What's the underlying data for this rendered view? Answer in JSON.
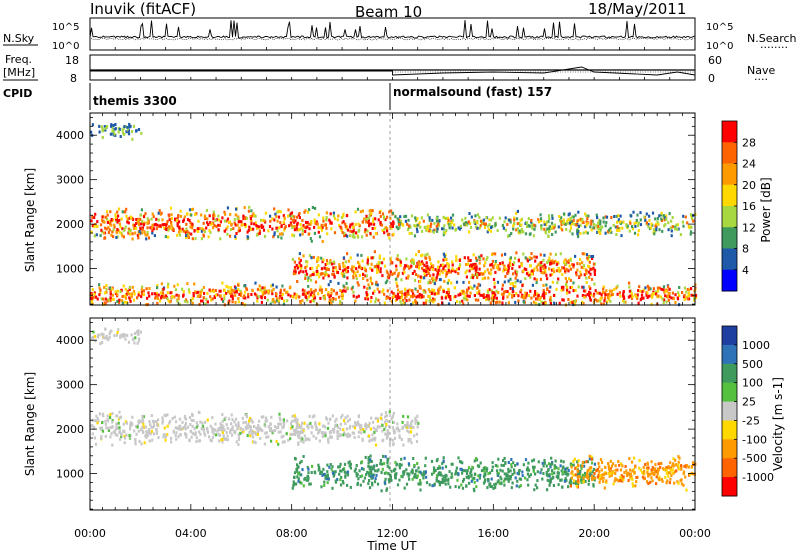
{
  "header": {
    "station": "Inuvik (fitACF)",
    "beam": "Beam 10",
    "date": "18/May/2011"
  },
  "nsky_panel": {
    "left_label": "N.Sky",
    "left_ticks": [
      "10^5",
      "10^0"
    ],
    "right_ticks": [
      "10^5",
      "10^0"
    ],
    "right_label": "N.Search",
    "right_label_dots": "........"
  },
  "freq_panel": {
    "label_top": "Freq.",
    "label_unit": "[MHz]",
    "left_ticks": [
      "18",
      "8"
    ],
    "right_ticks": [
      "60",
      "0"
    ],
    "right_label": "Nave",
    "right_label_dots": "...."
  },
  "cpid_panel": {
    "label": "CPID",
    "segments": [
      {
        "name": "themis 3300",
        "start_hour": 0
      },
      {
        "name": "normalsound (fast) 157",
        "start_hour": 12
      }
    ]
  },
  "chart_data": [
    {
      "type": "heatmap",
      "title": "",
      "xlabel": "Time UT",
      "ylabel": "Slant Range [km]",
      "xlim_hours": [
        0,
        24
      ],
      "ylim": [
        180,
        4500
      ],
      "yticks": [
        1000,
        2000,
        3000,
        4000
      ],
      "xtick_labels": [
        "00:00",
        "04:00",
        "08:00",
        "12:00",
        "16:00",
        "20:00",
        "00:00"
      ],
      "colorbar": {
        "label": "Power [dB]",
        "ticks": [
          "28",
          "24",
          "20",
          "16",
          "12",
          "8",
          "4"
        ],
        "colors": [
          "#ff0000",
          "#ff6400",
          "#ff9a00",
          "#ffd800",
          "#a8d840",
          "#3f9a5e",
          "#1e5aa8",
          "#0000ff"
        ]
      },
      "scatter_bands": [
        {
          "from_hour": 0,
          "to_hour": 12,
          "center_km": 2000,
          "width_km": 400,
          "level": "strong"
        },
        {
          "from_hour": 12,
          "to_hour": 24,
          "center_km": 2000,
          "width_km": 300,
          "level": "medium"
        },
        {
          "from_hour": 8,
          "to_hour": 20,
          "center_km": 1000,
          "width_km": 400,
          "level": "strong"
        },
        {
          "from_hour": 0,
          "to_hour": 24,
          "center_km": 400,
          "width_km": 300,
          "level": "strong"
        },
        {
          "from_hour": 0,
          "to_hour": 2,
          "center_km": 4100,
          "width_km": 200,
          "level": "weak"
        }
      ]
    },
    {
      "type": "heatmap",
      "title": "",
      "xlabel": "Time UT",
      "ylabel": "Slant Range [km]",
      "xlim_hours": [
        0,
        24
      ],
      "ylim": [
        180,
        4500
      ],
      "yticks": [
        1000,
        2000,
        3000,
        4000
      ],
      "xtick_labels": [
        "00:00",
        "04:00",
        "08:00",
        "12:00",
        "16:00",
        "20:00",
        "00:00"
      ],
      "colorbar": {
        "label": "Velocity [m s-1]",
        "ticks": [
          "1000",
          "500",
          "100",
          "25",
          "-25",
          "-100",
          "-500",
          "-1000"
        ],
        "colors": [
          "#1f3fa0",
          "#2e72b8",
          "#3f9a5e",
          "#55c040",
          "#c8c8c8",
          "#ffd800",
          "#ff9a00",
          "#ff6400",
          "#ff0000"
        ]
      },
      "scatter_bands": [
        {
          "from_hour": 0,
          "to_hour": 13,
          "center_km": 2000,
          "width_km": 400,
          "level": "ground"
        },
        {
          "from_hour": 8,
          "to_hour": 20,
          "center_km": 1000,
          "width_km": 400,
          "level": "positive"
        },
        {
          "from_hour": 19,
          "to_hour": 24,
          "center_km": 1000,
          "width_km": 400,
          "level": "negative"
        },
        {
          "from_hour": 0,
          "to_hour": 2,
          "center_km": 4100,
          "width_km": 200,
          "level": "ground"
        }
      ]
    }
  ]
}
